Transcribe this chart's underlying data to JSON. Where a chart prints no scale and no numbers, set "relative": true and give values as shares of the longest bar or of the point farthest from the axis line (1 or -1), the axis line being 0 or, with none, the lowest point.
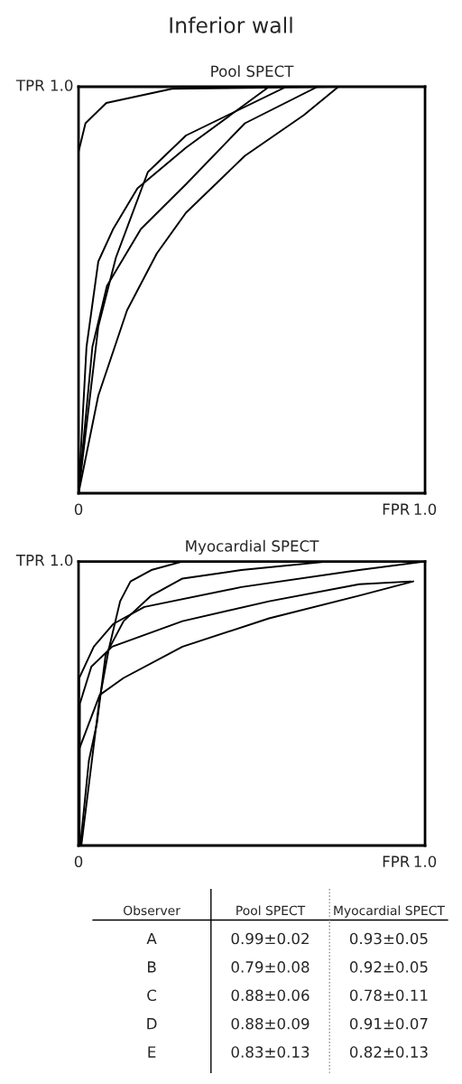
{
  "chart_data": [
    {
      "type": "line",
      "title": "Inferior wall",
      "subtitle": "Pool SPECT",
      "xlabel": "FPR",
      "relative": true,
      "annotations": [
        "TPR 1.0"
      ],
      "xlim": [
        0,
        1
      ],
      "xticks": [
        0,
        {
          "value": 1,
          "label": "1.0"
        }
      ],
      "series": [
        {
          "color": "#000000",
          "x": [
            0,
            0,
            0.02,
            0.08,
            0.27,
            0.73
          ],
          "values": [
            0,
            0.84,
            0.91,
            0.96,
            0.995,
            1
          ]
        },
        {
          "color": "#000000",
          "x": [
            0,
            0.057,
            0.14,
            0.226,
            0.31,
            0.48,
            0.65,
            0.75
          ],
          "values": [
            0,
            0.24,
            0.45,
            0.59,
            0.69,
            0.83,
            0.93,
            1
          ]
        },
        {
          "color": "#000000",
          "x": [
            0,
            0.023,
            0.057,
            0.1,
            0.17,
            0.31,
            0.55
          ],
          "values": [
            0,
            0.36,
            0.57,
            0.65,
            0.75,
            0.85,
            1
          ]
        },
        {
          "color": "#000000",
          "x": [
            0,
            0.057,
            0.108,
            0.2,
            0.31,
            0.6
          ],
          "values": [
            0,
            0.41,
            0.58,
            0.79,
            0.88,
            1
          ]
        },
        {
          "color": "#000000",
          "x": [
            0,
            0.04,
            0.082,
            0.18,
            0.31,
            0.48,
            0.69,
            1
          ],
          "values": [
            0,
            0.36,
            0.51,
            0.65,
            0.76,
            0.91,
            1,
            1
          ]
        }
      ]
    },
    {
      "type": "line",
      "title": "Myocardial SPECT",
      "xlabel": "FPR",
      "relative": true,
      "annotations": [
        "TPR 1.0"
      ],
      "xlim": [
        0,
        1
      ],
      "xticks": [
        0,
        {
          "value": 1,
          "label": "1.0"
        }
      ],
      "series": [
        {
          "color": "#000000",
          "x": [
            0,
            0.002,
            0.061,
            0.13,
            0.3,
            0.55,
            0.81,
            0.966
          ],
          "values": [
            0,
            0.34,
            0.53,
            0.59,
            0.7,
            0.8,
            0.88,
            0.93
          ]
        },
        {
          "color": "#000000",
          "x": [
            0.003,
            0.004,
            0.037,
            0.097,
            0.3,
            0.55,
            0.81,
            0.96
          ],
          "values": [
            0,
            0.5,
            0.63,
            0.7,
            0.79,
            0.86,
            0.92,
            0.93
          ]
        },
        {
          "color": "#000000",
          "x": [
            0,
            0.002,
            0.044,
            0.1,
            0.19,
            0.47,
            0.81,
            1
          ],
          "values": [
            0,
            0.59,
            0.7,
            0.78,
            0.84,
            0.91,
            0.97,
            1
          ]
        },
        {
          "color": "#000000",
          "x": [
            0.008,
            0.06,
            0.087,
            0.12,
            0.15,
            0.21,
            0.3
          ],
          "values": [
            0,
            0.51,
            0.69,
            0.86,
            0.93,
            0.97,
            1
          ]
        },
        {
          "color": "#000000",
          "x": [
            0.005,
            0.03,
            0.053,
            0.078,
            0.13,
            0.21,
            0.3,
            0.47,
            0.72
          ],
          "values": [
            0,
            0.3,
            0.43,
            0.67,
            0.79,
            0.88,
            0.94,
            0.97,
            1
          ]
        }
      ]
    },
    {
      "type": "other",
      "annotations": [
        "Observer",
        "Pool SPECT",
        "Myocardial SPECT",
        "A",
        "0.99±0.02",
        "0.93±0.05",
        "B",
        "0.79±0.08",
        "0.92±0.05",
        "C",
        "0.88±0.06",
        "0.78±0.11",
        "D",
        "0.88±0.09",
        "0.91±0.07",
        "E",
        "0.83±0.13",
        "0.82±0.13"
      ]
    }
  ]
}
